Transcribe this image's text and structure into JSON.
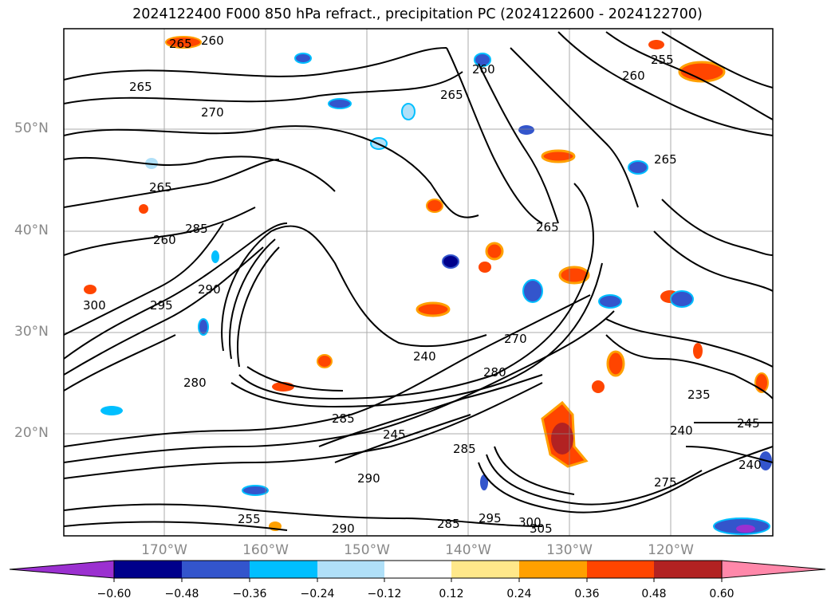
{
  "title": "2024122400 F000 850 hPa refract., precipitation PC (2024122600 - 2024122700)",
  "latitudes": [
    "50°N",
    "40°N",
    "30°N",
    "20°N"
  ],
  "longitudes": [
    "170°W",
    "160°W",
    "150°W",
    "140°W",
    "130°W",
    "120°W"
  ],
  "contour_labels": [
    "265",
    "265",
    "270",
    "265",
    "260",
    "265",
    "260",
    "255",
    "265",
    "260",
    "265",
    "260",
    "285",
    "295",
    "300",
    "290",
    "240",
    "280",
    "270",
    "285",
    "245",
    "290",
    "280",
    "255",
    "285",
    "295",
    "300",
    "305",
    "245",
    "240",
    "235",
    "240",
    "290",
    "285",
    "275"
  ],
  "colorbar": {
    "ticks": [
      "−0.60",
      "−0.48",
      "−0.36",
      "−0.24",
      "−0.12",
      "0.12",
      "0.24",
      "0.36",
      "0.48",
      "0.60"
    ],
    "colors": [
      "#9b30d0",
      "#00008b",
      "#3355cc",
      "#00bfff",
      "#b0e0f8",
      "#ffffff",
      "#ffe88a",
      "#ffa000",
      "#ff4500",
      "#b22222",
      "#ff88aa"
    ]
  },
  "colors": {
    "contour": "#000000",
    "grid": "#888888",
    "frame": "#000000"
  }
}
